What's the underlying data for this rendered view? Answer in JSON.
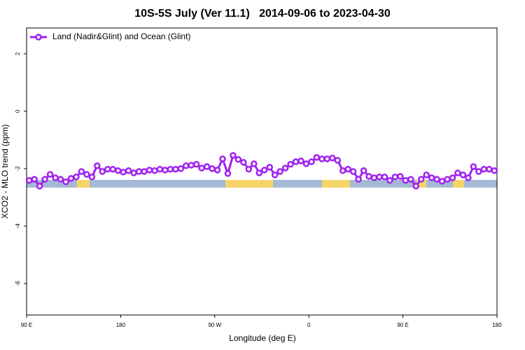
{
  "chart_data": {
    "type": "line",
    "title": "10S-5S July (Ver 11.1)   2014-09-06 to 2023-04-30",
    "x_label": "Longitude (deg E)",
    "y_label": "XCO2 - MLO trend (ppm)",
    "xlim": [
      90,
      540
    ],
    "xticks": [
      {
        "value": 90,
        "label": "90 E"
      },
      {
        "value": 180,
        "label": "180"
      },
      {
        "value": 270,
        "label": "90 W"
      },
      {
        "value": 360,
        "label": "0"
      },
      {
        "value": 450,
        "label": "90 E"
      },
      {
        "value": 540,
        "label": "180"
      }
    ],
    "ylim": [
      -7.1,
      2.9
    ],
    "yticks": [
      2,
      0,
      -2,
      -4,
      -6
    ],
    "legend_position": "upper left",
    "x": [
      92.5,
      97.5,
      102.5,
      107.5,
      112.5,
      117.5,
      122.5,
      127.5,
      132.5,
      137.5,
      142.5,
      147.5,
      152.5,
      157.5,
      162.5,
      167.5,
      172.5,
      177.5,
      182.5,
      187.5,
      192.5,
      197.5,
      202.5,
      207.5,
      212.5,
      217.5,
      222.5,
      227.5,
      232.5,
      237.5,
      242.5,
      247.5,
      252.5,
      257.5,
      262.5,
      267.5,
      272.5,
      277.5,
      282.5,
      287.5,
      292.5,
      297.5,
      302.5,
      307.5,
      312.5,
      317.5,
      322.5,
      327.5,
      332.5,
      337.5,
      342.5,
      347.5,
      352.5,
      357.5,
      362.5,
      367.5,
      372.5,
      377.5,
      382.5,
      387.5,
      392.5,
      397.5,
      402.5,
      407.5,
      412.5,
      417.5,
      422.5,
      427.5,
      432.5,
      437.5,
      442.5,
      447.5,
      452.5,
      457.5,
      462.5,
      467.5,
      472.5,
      477.5,
      482.5,
      487.5,
      492.5,
      497.5,
      502.5,
      507.5,
      512.5,
      517.5,
      522.5,
      527.5,
      532.5,
      537.5
    ],
    "series": [
      {
        "name": "Land (Nadir&Glint) and Ocean (Glint)",
        "color": "#a020f0",
        "values": [
          -2.41,
          -2.37,
          -2.61,
          -2.37,
          -2.2,
          -2.32,
          -2.37,
          -2.46,
          -2.34,
          -2.29,
          -2.1,
          -2.2,
          -2.29,
          -1.9,
          -2.1,
          -2.02,
          -2.02,
          -2.07,
          -2.12,
          -2.07,
          -2.15,
          -2.1,
          -2.1,
          -2.05,
          -2.07,
          -2.02,
          -2.05,
          -2.02,
          -2.02,
          -2.0,
          -1.9,
          -1.88,
          -1.85,
          -1.98,
          -1.93,
          -2.0,
          -2.05,
          -1.66,
          -2.17,
          -1.54,
          -1.68,
          -1.78,
          -2.02,
          -1.83,
          -2.15,
          -2.05,
          -1.95,
          -2.22,
          -2.1,
          -1.98,
          -1.85,
          -1.76,
          -1.73,
          -1.83,
          -1.76,
          -1.61,
          -1.66,
          -1.66,
          -1.63,
          -1.71,
          -2.07,
          -2.02,
          -2.1,
          -2.37,
          -2.07,
          -2.27,
          -2.32,
          -2.29,
          -2.29,
          -2.41,
          -2.29,
          -2.27,
          -2.41,
          -2.37,
          -2.61,
          -2.37,
          -2.22,
          -2.32,
          -2.37,
          -2.44,
          -2.37,
          -2.32,
          -2.15,
          -2.22,
          -2.32,
          -1.93,
          -2.1,
          -2.02,
          -2.02,
          -2.07
        ]
      }
    ]
  }
}
